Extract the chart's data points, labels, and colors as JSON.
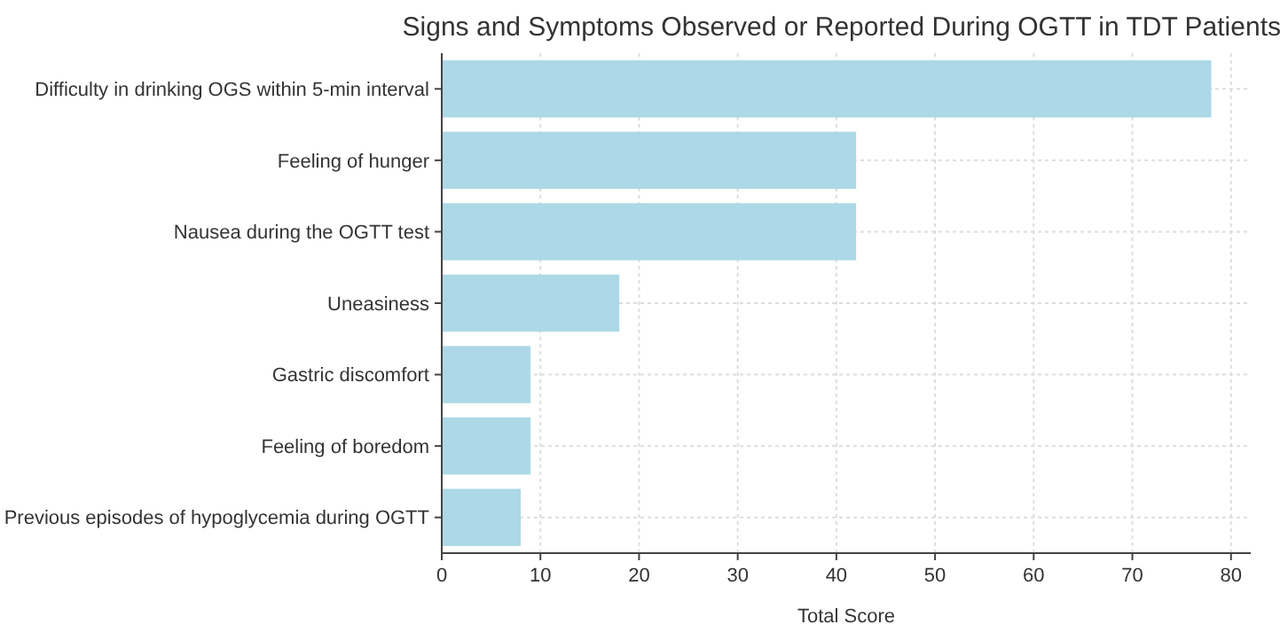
{
  "chart_data": {
    "type": "bar",
    "orientation": "horizontal",
    "title": "Signs and Symptoms Observed or Reported During OGTT in TDT Patients",
    "xlabel": "Total Score",
    "categories": [
      "Difficulty in drinking OGS within 5-min interval",
      "Feeling of hunger",
      "Nausea during the OGTT test",
      "Uneasiness",
      "Gastric discomfort",
      "Feeling of boredom",
      "Previous episodes of hypoglycemia during OGTT"
    ],
    "values": [
      78,
      42,
      42,
      18,
      9,
      9,
      8
    ],
    "color": "#add8e6",
    "xlim": [
      0,
      82
    ],
    "xticks": [
      0,
      10,
      20,
      30,
      40,
      50,
      60,
      70,
      80
    ],
    "grid": true
  }
}
